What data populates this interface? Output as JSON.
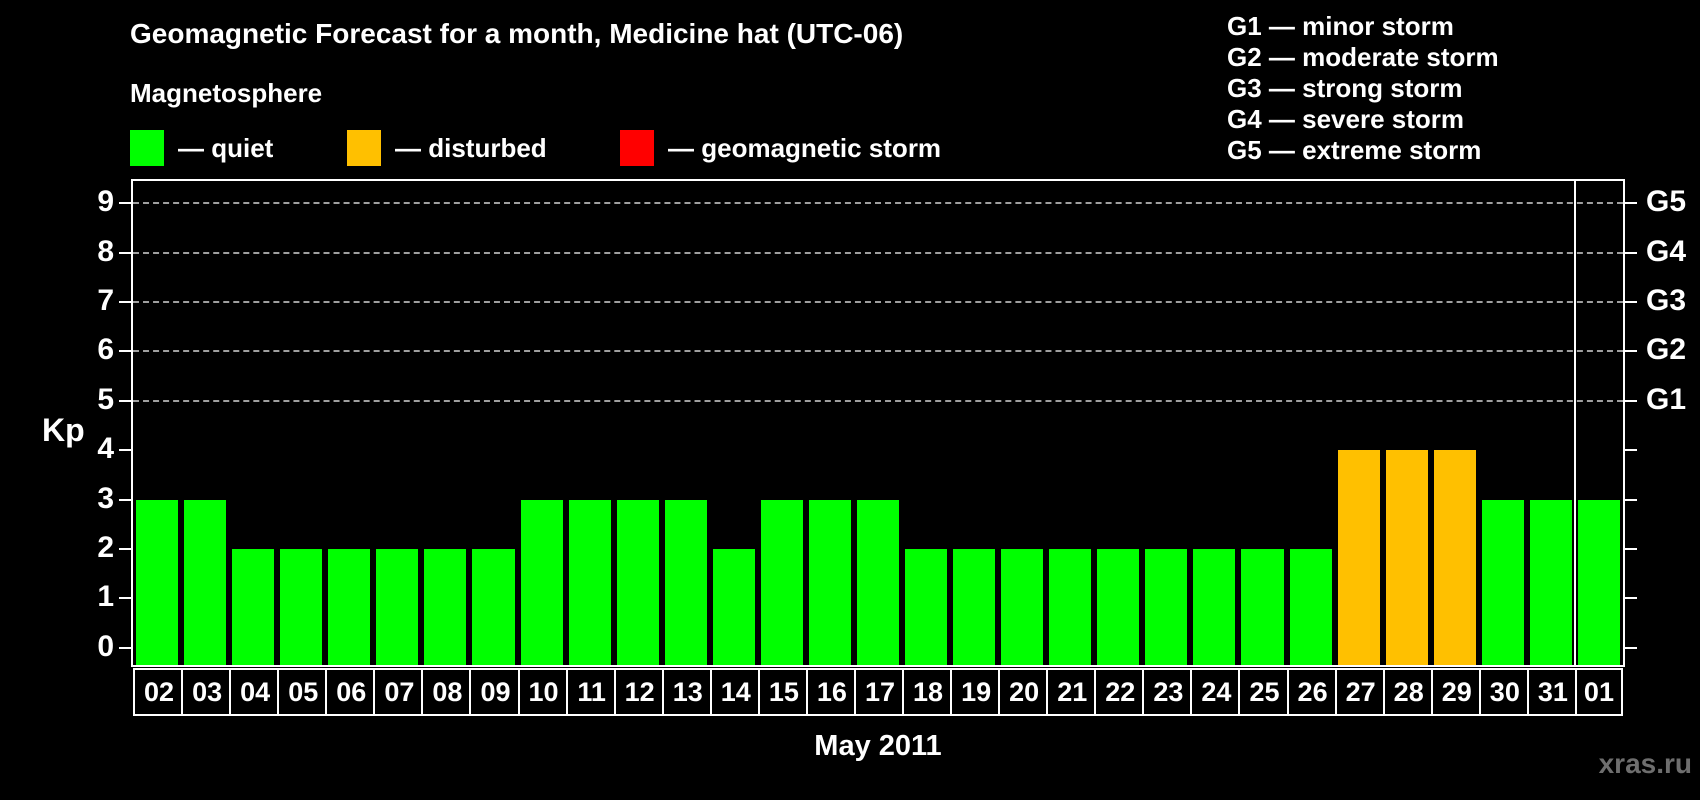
{
  "header": {
    "title": "Geomagnetic Forecast for a month, Medicine hat (UTC-06)"
  },
  "legend": {
    "title": "Magnetosphere",
    "items": [
      {
        "key": "quiet",
        "label": "— quiet",
        "color": "#00ff00"
      },
      {
        "key": "disturbed",
        "label": "— disturbed",
        "color": "#ffc000"
      },
      {
        "key": "storm",
        "label": "— geomagnetic storm",
        "color": "#ff0000"
      }
    ]
  },
  "g_legend": {
    "items": [
      {
        "text": "G1 — minor storm"
      },
      {
        "text": "G2 — moderate storm"
      },
      {
        "text": "G3 — strong storm"
      },
      {
        "text": "G4 — severe storm"
      },
      {
        "text": "G5 — extreme storm"
      }
    ]
  },
  "axes": {
    "left_label": "Kp",
    "x_title": "May 2011"
  },
  "footer": {
    "watermark": "xras.ru"
  },
  "chart_data": {
    "type": "bar",
    "title": "Geomagnetic Forecast for a month, Medicine hat (UTC-06)",
    "xlabel": "May 2011",
    "ylabel": "Kp",
    "ylim": [
      -0.35,
      9.45
    ],
    "grid": "dashed horizontal gridlines at Kp 5-9 only",
    "legend_position": "top-left",
    "categories": [
      "02",
      "03",
      "04",
      "05",
      "06",
      "07",
      "08",
      "09",
      "10",
      "11",
      "12",
      "13",
      "14",
      "15",
      "16",
      "17",
      "18",
      "19",
      "20",
      "21",
      "22",
      "23",
      "24",
      "25",
      "26",
      "27",
      "28",
      "29",
      "30",
      "31",
      "01"
    ],
    "values": [
      3,
      3,
      2,
      2,
      2,
      2,
      2,
      2,
      3,
      3,
      3,
      3,
      2,
      3,
      3,
      3,
      2,
      2,
      2,
      2,
      2,
      2,
      2,
      2,
      2,
      4,
      4,
      4,
      3,
      3,
      3
    ],
    "statuses": [
      "quiet",
      "quiet",
      "quiet",
      "quiet",
      "quiet",
      "quiet",
      "quiet",
      "quiet",
      "quiet",
      "quiet",
      "quiet",
      "quiet",
      "quiet",
      "quiet",
      "quiet",
      "quiet",
      "quiet",
      "quiet",
      "quiet",
      "quiet",
      "quiet",
      "quiet",
      "quiet",
      "quiet",
      "quiet",
      "disturbed",
      "disturbed",
      "disturbed",
      "quiet",
      "quiet",
      "quiet"
    ],
    "status_colors": {
      "quiet": "#00ff00",
      "disturbed": "#ffc000",
      "storm": "#ff0000"
    },
    "left_ticks": [
      0,
      1,
      2,
      3,
      4,
      5,
      6,
      7,
      8,
      9
    ],
    "gridlines_at": [
      5,
      6,
      7,
      8,
      9
    ],
    "right_axis_labels": {
      "5": "G1",
      "6": "G2",
      "7": "G3",
      "8": "G4",
      "9": "G5"
    },
    "month_divider_before_category": "01"
  }
}
